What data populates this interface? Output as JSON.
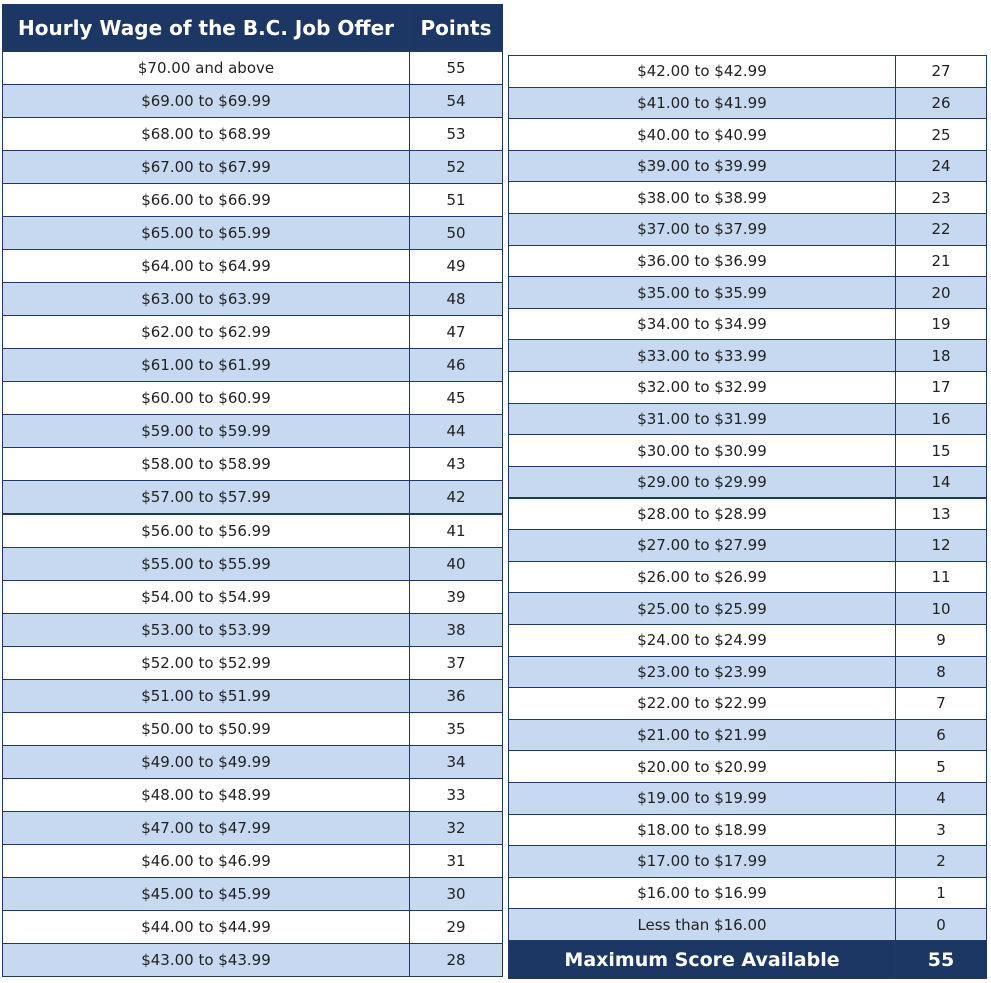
{
  "left_table": {
    "header": [
      "Hourly Wage of the B.C. Job Offer",
      "Points"
    ],
    "rows": [
      [
        "$70.00 and above",
        55
      ],
      [
        "$69.00 to $69.99",
        54
      ],
      [
        "$68.00 to $68.99",
        53
      ],
      [
        "$67.00 to $67.99",
        52
      ],
      [
        "$66.00 to $66.99",
        51
      ],
      [
        "$65.00 to $65.99",
        50
      ],
      [
        "$64.00 to $64.99",
        49
      ],
      [
        "$63.00 to $63.99",
        48
      ],
      [
        "$62.00 to $62.99",
        47
      ],
      [
        "$61.00 to $61.99",
        46
      ],
      [
        "$60.00 to $60.99",
        45
      ],
      [
        "$59.00 to $59.99",
        44
      ],
      [
        "$58.00 to $58.99",
        43
      ],
      [
        "$57.00 to $57.99",
        42
      ],
      [
        "$56.00 to $56.99",
        41
      ],
      [
        "$55.00 to $55.99",
        40
      ],
      [
        "$54.00 to $54.99",
        39
      ],
      [
        "$53.00 to $53.99",
        38
      ],
      [
        "$52.00 to $52.99",
        37
      ],
      [
        "$51.00 to $51.99",
        36
      ],
      [
        "$50.00 to $50.99",
        35
      ],
      [
        "$49.00 to $49.99",
        34
      ],
      [
        "$48.00 to $48.99",
        33
      ],
      [
        "$47.00 to $47.99",
        32
      ],
      [
        "$46.00 to $46.99",
        31
      ],
      [
        "$45.00 to $45.99",
        30
      ],
      [
        "$44.00 to $44.99",
        29
      ],
      [
        "$43.00 to $43.99",
        28
      ]
    ]
  },
  "right_table": {
    "rows": [
      [
        "$42.00 to $42.99",
        27
      ],
      [
        "$41.00 to $41.99",
        26
      ],
      [
        "$40.00 to $40.99",
        25
      ],
      [
        "$39.00 to $39.99",
        24
      ],
      [
        "$38.00 to $38.99",
        23
      ],
      [
        "$37.00 to $37.99",
        22
      ],
      [
        "$36.00 to $36.99",
        21
      ],
      [
        "$35.00 to $35.99",
        20
      ],
      [
        "$34.00 to $34.99",
        19
      ],
      [
        "$33.00 to $33.99",
        18
      ],
      [
        "$32.00 to $32.99",
        17
      ],
      [
        "$31.00 to $31.99",
        16
      ],
      [
        "$30.00 to $30.99",
        15
      ],
      [
        "$29.00 to $29.99",
        14
      ],
      [
        "$28.00 to $28.99",
        13
      ],
      [
        "$27.00 to $27.99",
        12
      ],
      [
        "$26.00 to $26.99",
        11
      ],
      [
        "$25.00 to $25.99",
        10
      ],
      [
        "$24.00 to $24.99",
        9
      ],
      [
        "$23.00 to $23.99",
        8
      ],
      [
        "$22.00 to $22.99",
        7
      ],
      [
        "$21.00 to $21.99",
        6
      ],
      [
        "$20.00 to $20.99",
        5
      ],
      [
        "$19.00 to $19.99",
        4
      ],
      [
        "$18.00 to $18.99",
        3
      ],
      [
        "$17.00 to $17.99",
        2
      ],
      [
        "$16.00 to $16.99",
        1
      ],
      [
        "Less than $16.00",
        0
      ]
    ],
    "footer": [
      "Maximum Score Available",
      55
    ]
  }
}
